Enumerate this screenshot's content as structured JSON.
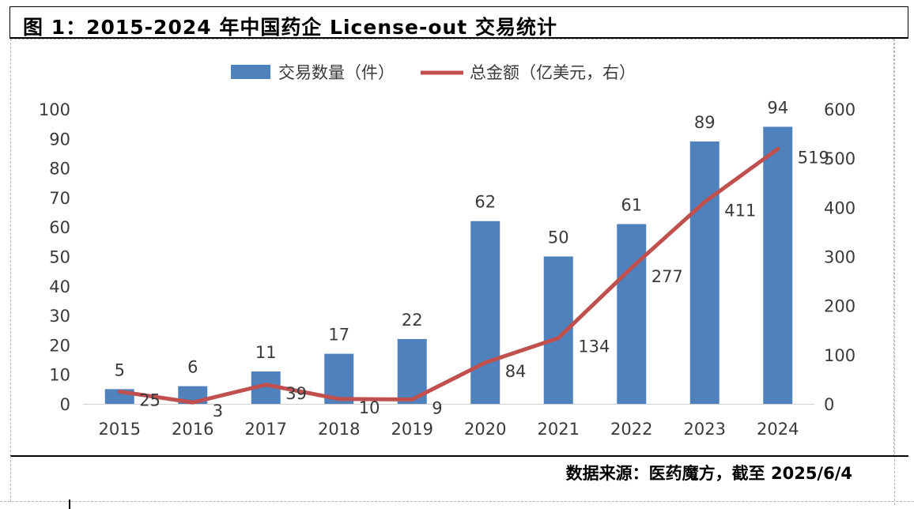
{
  "title": "图 1：2015-2024 年中国药企 License-out 交易统计",
  "source": "数据来源：医药魔方，截至 2025/6/4",
  "colors": {
    "bar": "#4f81bd",
    "line": "#c0504d"
  },
  "chart_data": {
    "type": "bar+line",
    "categories": [
      "2015",
      "2016",
      "2017",
      "2018",
      "2019",
      "2020",
      "2021",
      "2022",
      "2023",
      "2024"
    ],
    "legend": {
      "position": "top-center"
    },
    "series": [
      {
        "name": "交易数量（件）",
        "type": "bar",
        "axis": "left",
        "values": [
          5,
          6,
          11,
          17,
          22,
          62,
          50,
          61,
          89,
          94
        ],
        "labels": [
          "5",
          "6",
          "11",
          "17",
          "22",
          "62",
          "50",
          "61",
          "89",
          "94"
        ]
      },
      {
        "name": "总金额（亿美元，右）",
        "type": "line",
        "axis": "right",
        "values": [
          25,
          3,
          39,
          10,
          9,
          84,
          134,
          277,
          411,
          519
        ],
        "labels": [
          "25",
          "3",
          "39",
          "10",
          "9",
          "84",
          "134",
          "277",
          "411",
          "519"
        ]
      }
    ],
    "left_axis": {
      "ylim": [
        0,
        100
      ],
      "ticks": [
        "0",
        "10",
        "20",
        "30",
        "40",
        "50",
        "60",
        "70",
        "80",
        "90",
        "100"
      ]
    },
    "right_axis": {
      "ylim": [
        0,
        600
      ],
      "ticks": [
        "0",
        "100",
        "200",
        "300",
        "400",
        "500",
        "600"
      ]
    },
    "grid": false
  }
}
